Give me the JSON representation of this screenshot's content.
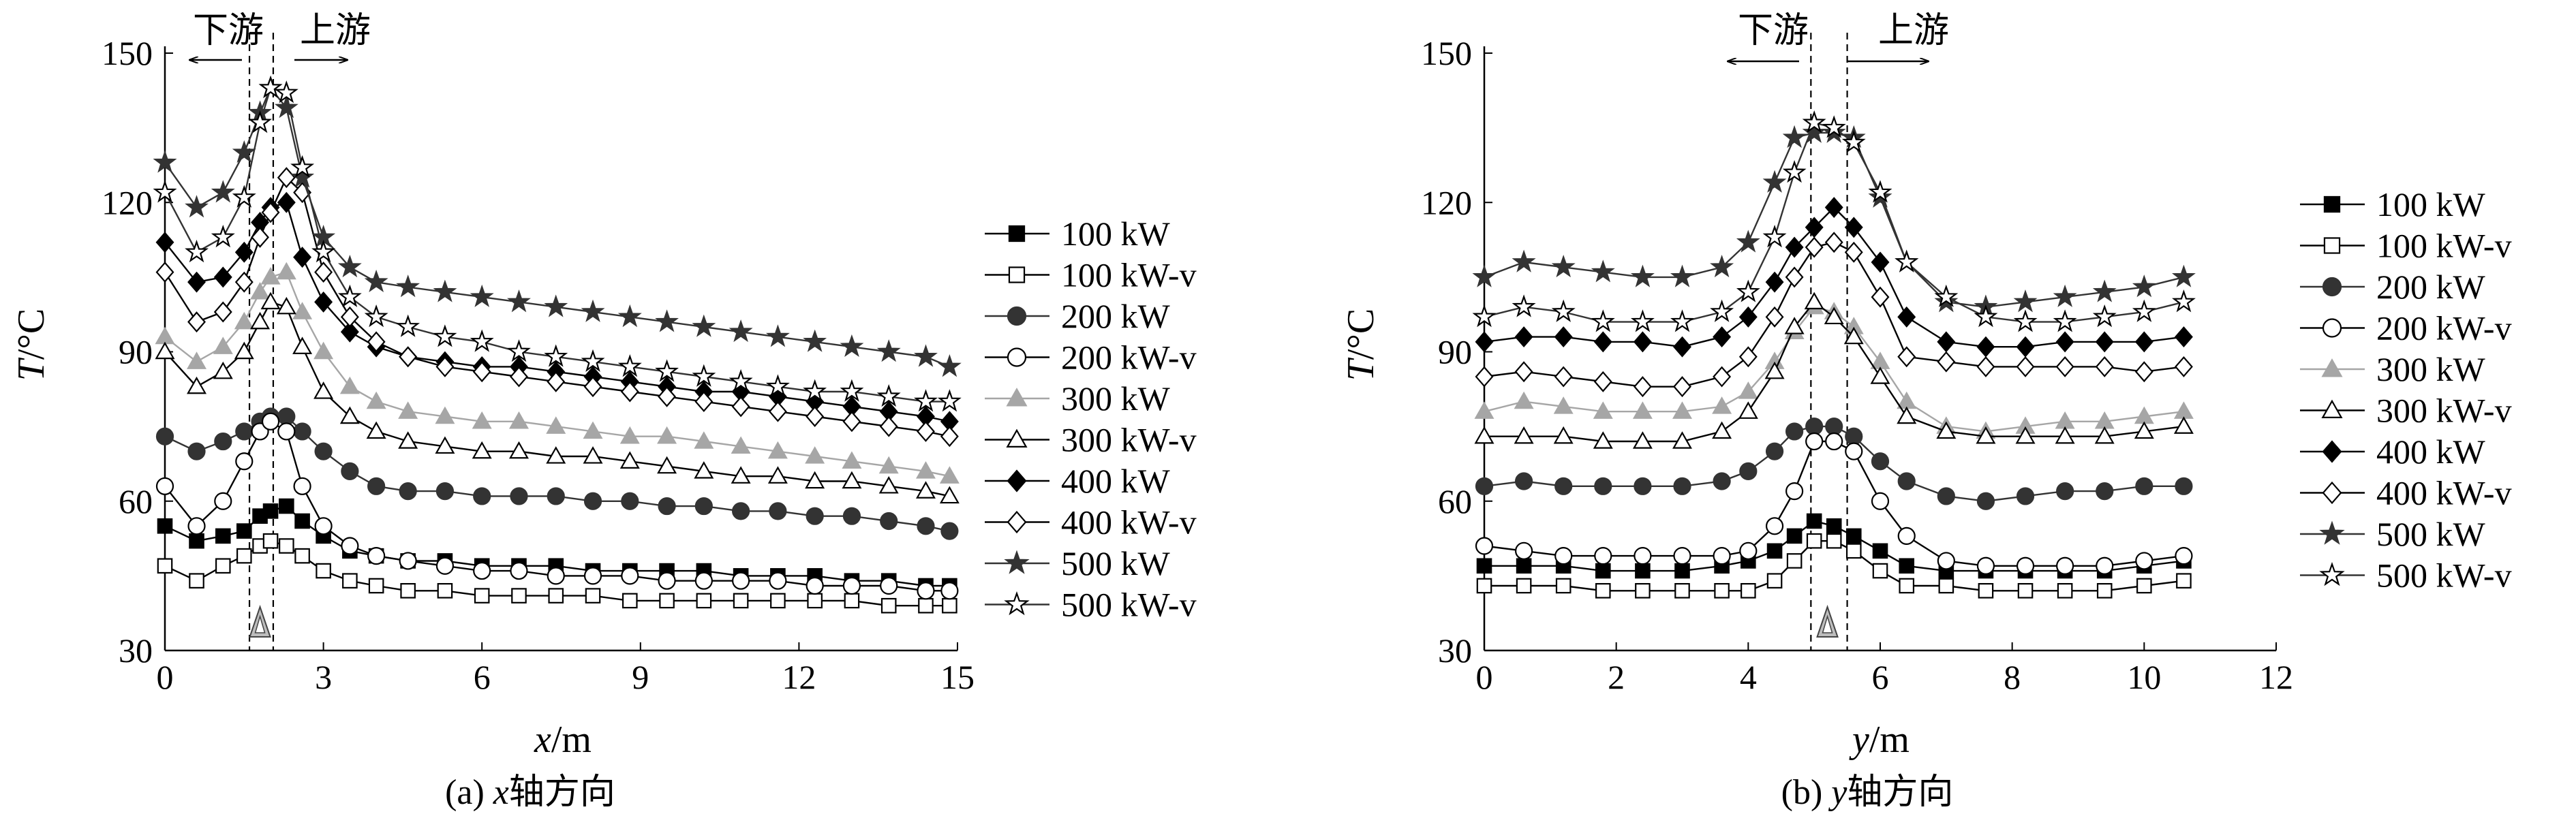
{
  "figure": {
    "labels": [
      "下游",
      "上游"
    ]
  },
  "series_style": [
    {
      "name": "100 kW",
      "marker": "square",
      "filled": true,
      "color": "#000000"
    },
    {
      "name": "100 kW-v",
      "marker": "square",
      "filled": false,
      "color": "#000000"
    },
    {
      "name": "200 kW",
      "marker": "circle",
      "filled": true,
      "color": "#333333"
    },
    {
      "name": "200 kW-v",
      "marker": "circle",
      "filled": false,
      "color": "#000000"
    },
    {
      "name": "300 kW",
      "marker": "triangle",
      "filled": true,
      "color": "#a6a6a6"
    },
    {
      "name": "300 kW-v",
      "marker": "triangle",
      "filled": false,
      "color": "#000000"
    },
    {
      "name": "400 kW",
      "marker": "diamond",
      "filled": true,
      "color": "#000000"
    },
    {
      "name": "400 kW-v",
      "marker": "diamond",
      "filled": false,
      "color": "#000000"
    },
    {
      "name": "500 kW",
      "marker": "star",
      "filled": true,
      "color": "#333333"
    },
    {
      "name": "500 kW-v",
      "marker": "star",
      "filled": false,
      "color": "#333333"
    }
  ],
  "chart_data": [
    {
      "type": "line",
      "panel_caption_prefix": "(a) ",
      "panel_caption_var": "x",
      "panel_caption_suffix": "轴方向",
      "xlabel_var": "x",
      "xlabel_unit": "/m",
      "ylabel_var": "T",
      "ylabel_unit": "/°C",
      "xlim": [
        0,
        15
      ],
      "ylim": [
        30,
        150
      ],
      "xticks": [
        0,
        3,
        6,
        9,
        12,
        15
      ],
      "yticks": [
        30,
        60,
        90,
        120,
        150
      ],
      "grid": false,
      "legend_position": "right",
      "dashed_lines_x": [
        1.6,
        2.05
      ],
      "source_marker_x": 1.8,
      "x": [
        0,
        0.6,
        1.1,
        1.5,
        1.8,
        2.0,
        2.3,
        2.6,
        3.0,
        3.5,
        4.0,
        4.6,
        5.3,
        6.0,
        6.7,
        7.4,
        8.1,
        8.8,
        9.5,
        10.2,
        10.9,
        11.6,
        12.3,
        13.0,
        13.7,
        14.4,
        14.85
      ],
      "series": [
        {
          "name": "100 kW",
          "values": [
            55,
            52,
            53,
            54,
            57,
            58,
            59,
            56,
            53,
            50,
            49,
            48,
            48,
            47,
            47,
            47,
            46,
            46,
            46,
            46,
            45,
            45,
            45,
            44,
            44,
            43,
            43
          ]
        },
        {
          "name": "100 kW-v",
          "values": [
            47,
            44,
            47,
            49,
            51,
            52,
            51,
            49,
            46,
            44,
            43,
            42,
            42,
            41,
            41,
            41,
            41,
            40,
            40,
            40,
            40,
            40,
            40,
            40,
            39,
            39,
            39
          ]
        },
        {
          "name": "200 kW",
          "values": [
            73,
            70,
            72,
            74,
            76,
            77,
            77,
            74,
            70,
            66,
            63,
            62,
            62,
            61,
            61,
            61,
            60,
            60,
            59,
            59,
            58,
            58,
            57,
            57,
            56,
            55,
            54
          ]
        },
        {
          "name": "200 kW-v",
          "values": [
            63,
            55,
            60,
            68,
            74,
            76,
            74,
            63,
            55,
            51,
            49,
            48,
            47,
            46,
            46,
            45,
            45,
            45,
            44,
            44,
            44,
            44,
            43,
            43,
            43,
            42,
            42
          ]
        },
        {
          "name": "300 kW",
          "values": [
            93,
            88,
            91,
            96,
            102,
            105,
            106,
            98,
            90,
            83,
            80,
            78,
            77,
            76,
            76,
            75,
            74,
            73,
            73,
            72,
            71,
            70,
            69,
            68,
            67,
            66,
            65
          ]
        },
        {
          "name": "300 kW-v",
          "values": [
            90,
            83,
            86,
            90,
            96,
            100,
            99,
            91,
            82,
            77,
            74,
            72,
            71,
            70,
            70,
            69,
            69,
            68,
            67,
            66,
            65,
            65,
            64,
            64,
            63,
            62,
            61
          ]
        },
        {
          "name": "400 kW",
          "values": [
            112,
            104,
            105,
            110,
            116,
            119,
            120,
            109,
            100,
            94,
            91,
            89,
            88,
            87,
            87,
            86,
            85,
            84,
            83,
            82,
            82,
            81,
            80,
            79,
            78,
            77,
            76
          ]
        },
        {
          "name": "400 kW-v",
          "values": [
            106,
            96,
            98,
            104,
            113,
            118,
            125,
            122,
            106,
            97,
            92,
            89,
            87,
            86,
            85,
            84,
            83,
            82,
            81,
            80,
            79,
            78,
            77,
            76,
            75,
            74,
            73
          ]
        },
        {
          "name": "500 kW",
          "values": [
            128,
            119,
            122,
            130,
            138,
            143,
            139,
            125,
            113,
            107,
            104,
            103,
            102,
            101,
            100,
            99,
            98,
            97,
            96,
            95,
            94,
            93,
            92,
            91,
            90,
            89,
            87
          ]
        },
        {
          "name": "500 kW-v",
          "values": [
            122,
            110,
            113,
            121,
            136,
            143,
            142,
            127,
            110,
            101,
            97,
            95,
            93,
            92,
            90,
            89,
            88,
            87,
            86,
            85,
            84,
            83,
            82,
            82,
            81,
            80,
            80
          ]
        }
      ]
    },
    {
      "type": "line",
      "panel_caption_prefix": "(b) ",
      "panel_caption_var": "y",
      "panel_caption_suffix": "轴方向",
      "xlabel_var": "y",
      "xlabel_unit": "/m",
      "ylabel_var": "T",
      "ylabel_unit": "/°C",
      "xlim": [
        0,
        12
      ],
      "ylim": [
        30,
        150
      ],
      "xticks": [
        0,
        2,
        4,
        6,
        8,
        10,
        12
      ],
      "yticks": [
        30,
        60,
        90,
        120,
        150
      ],
      "grid": false,
      "legend_position": "right",
      "dashed_lines_x": [
        4.95,
        5.5
      ],
      "source_marker_x": 5.2,
      "x": [
        0,
        0.6,
        1.2,
        1.8,
        2.4,
        3.0,
        3.6,
        4.0,
        4.4,
        4.7,
        5.0,
        5.3,
        5.6,
        6.0,
        6.4,
        7.0,
        7.6,
        8.2,
        8.8,
        9.4,
        10.0,
        10.6
      ],
      "series": [
        {
          "name": "100 kW",
          "values": [
            47,
            47,
            47,
            46,
            46,
            46,
            47,
            48,
            50,
            53,
            56,
            55,
            53,
            50,
            47,
            46,
            46,
            46,
            46,
            46,
            47,
            48
          ]
        },
        {
          "name": "100 kW-v",
          "values": [
            43,
            43,
            43,
            42,
            42,
            42,
            42,
            42,
            44,
            48,
            52,
            52,
            50,
            46,
            43,
            43,
            42,
            42,
            42,
            42,
            43,
            44
          ]
        },
        {
          "name": "200 kW",
          "values": [
            63,
            64,
            63,
            63,
            63,
            63,
            64,
            66,
            70,
            74,
            75,
            75,
            73,
            68,
            64,
            61,
            60,
            61,
            62,
            62,
            63,
            63
          ]
        },
        {
          "name": "200 kW-v",
          "values": [
            51,
            50,
            49,
            49,
            49,
            49,
            49,
            50,
            55,
            62,
            72,
            72,
            70,
            60,
            53,
            48,
            47,
            47,
            47,
            47,
            48,
            49
          ]
        },
        {
          "name": "300 kW",
          "values": [
            78,
            80,
            79,
            78,
            78,
            78,
            79,
            82,
            88,
            94,
            99,
            98,
            95,
            88,
            80,
            75,
            74,
            75,
            76,
            76,
            77,
            78
          ]
        },
        {
          "name": "300 kW-v",
          "values": [
            73,
            73,
            73,
            72,
            72,
            72,
            74,
            78,
            86,
            95,
            100,
            97,
            93,
            85,
            77,
            74,
            73,
            73,
            73,
            73,
            74,
            75
          ]
        },
        {
          "name": "400 kW",
          "values": [
            92,
            93,
            93,
            92,
            92,
            91,
            93,
            97,
            104,
            111,
            115,
            119,
            115,
            108,
            97,
            92,
            91,
            91,
            92,
            92,
            92,
            93
          ]
        },
        {
          "name": "400 kW-v",
          "values": [
            85,
            86,
            85,
            84,
            83,
            83,
            85,
            89,
            97,
            105,
            111,
            112,
            110,
            101,
            89,
            88,
            87,
            87,
            87,
            87,
            86,
            87
          ]
        },
        {
          "name": "500 kW",
          "values": [
            105,
            108,
            107,
            106,
            105,
            105,
            107,
            112,
            124,
            133,
            134,
            134,
            133,
            121,
            108,
            100,
            99,
            100,
            101,
            102,
            103,
            105
          ]
        },
        {
          "name": "500 kW-v",
          "values": [
            97,
            99,
            98,
            96,
            96,
            96,
            98,
            102,
            113,
            126,
            136,
            135,
            132,
            122,
            108,
            101,
            97,
            96,
            96,
            97,
            98,
            100
          ]
        }
      ]
    }
  ]
}
